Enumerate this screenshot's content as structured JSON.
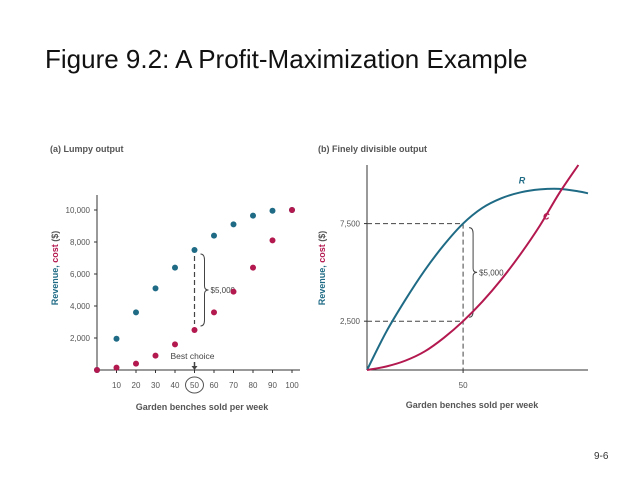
{
  "slide": {
    "title": "Figure 9.2: A Profit-Maximization Example",
    "page_number": "9-6"
  },
  "chart_data": [
    {
      "type": "scatter",
      "panel_label": "(a) Lumpy output",
      "xlabel": "Garden benches sold per week",
      "ylabel_prefix": "Revenue, ",
      "ylabel_cost": "cost",
      "ylabel_unit": " ($)",
      "x_ticks": [
        "10",
        "20",
        "30",
        "40",
        "50",
        "60",
        "70",
        "80",
        "90",
        "100"
      ],
      "y_ticks": [
        "2,000",
        "4,000",
        "6,000",
        "8,000",
        "10,000"
      ],
      "xlim": [
        0,
        100
      ],
      "ylim": [
        0,
        10000
      ],
      "series": [
        {
          "key": "revenue",
          "color": "#1f6b85",
          "x": [
            0,
            10,
            20,
            30,
            40,
            50,
            60,
            70,
            80,
            90,
            100
          ],
          "y": [
            0,
            1950,
            3600,
            5100,
            6400,
            7500,
            8400,
            9100,
            9650,
            9950,
            10000
          ]
        },
        {
          "key": "cost",
          "color": "#b3184f",
          "x": [
            0,
            10,
            20,
            30,
            40,
            50,
            60,
            70,
            80,
            90,
            100
          ],
          "y": [
            0,
            150,
            400,
            900,
            1600,
            2500,
            3600,
            4900,
            6400,
            8100,
            10000
          ]
        }
      ],
      "annotations": {
        "gap_label": "$5,000",
        "best_choice_label": "Best choice",
        "best_x": 50
      }
    },
    {
      "type": "line",
      "panel_label": "(b) Finely divisible output",
      "xlabel": "Garden benches sold per week",
      "ylabel_prefix": "Revenue, ",
      "ylabel_cost": "cost",
      "ylabel_unit": " ($)",
      "x_ticks": [
        "50"
      ],
      "y_ticks": [
        "2,500",
        "7,500"
      ],
      "xlim": [
        0,
        115
      ],
      "ylim": [
        0,
        10500
      ],
      "series": [
        {
          "key": "R",
          "name": "R",
          "color": "#1f6b85",
          "x": [
            0,
            10,
            20,
            30,
            40,
            50,
            60,
            70,
            80,
            90,
            100,
            110,
            115
          ],
          "y": [
            0,
            1950,
            3600,
            5100,
            6400,
            7500,
            8300,
            8800,
            9100,
            9250,
            9280,
            9150,
            9050
          ]
        },
        {
          "key": "C",
          "name": "C",
          "color": "#b3184f",
          "x": [
            0,
            10,
            20,
            30,
            40,
            50,
            60,
            70,
            80,
            90,
            100,
            110
          ],
          "y": [
            0,
            180,
            480,
            950,
            1650,
            2500,
            3500,
            4650,
            5950,
            7400,
            9050,
            10500
          ]
        }
      ],
      "annotations": {
        "gap_label": "$5,000",
        "guide_x": 50,
        "guide_y": [
          2500,
          7500
        ]
      }
    }
  ]
}
